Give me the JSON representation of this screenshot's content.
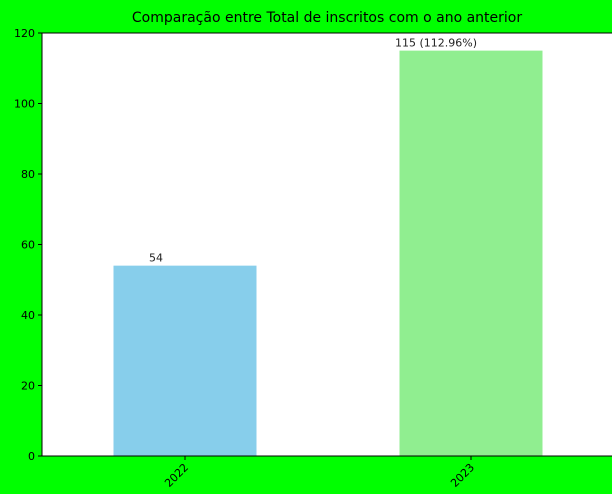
{
  "chart_data": {
    "type": "bar",
    "title": "Comparação entre Total de inscritos com o ano anterior",
    "xlabel": "",
    "ylabel": "",
    "categories": [
      "2022",
      "2023"
    ],
    "values": [
      54,
      115
    ],
    "data_labels": [
      "54",
      "115 (112.96%)"
    ],
    "colors": [
      "#87ceeb",
      "#90ee90"
    ],
    "ylim": [
      0,
      120
    ],
    "yticks": [
      0,
      20,
      40,
      60,
      80,
      100,
      120
    ],
    "grid": false,
    "legend": "none",
    "figure_background": "#00ff00",
    "axes_background": "#ffffff"
  }
}
